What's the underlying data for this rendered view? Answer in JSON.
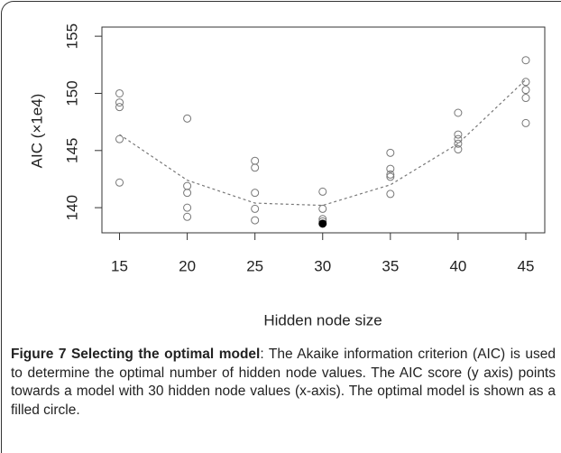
{
  "chart_data": {
    "type": "scatter",
    "xlabel": "Hidden node size",
    "ylabel": "AIC (×1e4)",
    "xlim": [
      13.7,
      46.4
    ],
    "ylim": [
      137.8,
      155.8
    ],
    "xticks": [
      15,
      20,
      25,
      30,
      35,
      40,
      45
    ],
    "yticks": [
      140,
      145,
      150,
      155
    ],
    "series": [
      {
        "color": "#777777",
        "filled": false,
        "x": [
          15,
          15,
          15,
          15,
          15,
          20,
          20,
          20,
          20,
          20,
          25,
          25,
          25,
          25,
          25,
          30,
          30,
          30,
          30,
          35,
          35,
          35,
          35,
          35,
          40,
          40,
          40,
          40,
          40,
          45,
          45,
          45,
          45,
          45
        ],
        "values": [
          150.0,
          149.2,
          148.8,
          146.0,
          142.2,
          147.8,
          141.9,
          141.3,
          140.0,
          139.2,
          144.1,
          143.5,
          141.3,
          139.9,
          138.9,
          141.4,
          139.9,
          139.0,
          138.8,
          144.8,
          143.4,
          142.9,
          142.7,
          141.2,
          148.3,
          146.4,
          146.0,
          145.6,
          145.1,
          152.9,
          151.0,
          150.3,
          149.6,
          147.4
        ]
      },
      {
        "color": "#000000",
        "filled": true,
        "x": [
          30
        ],
        "values": [
          138.6
        ]
      }
    ],
    "fit": {
      "color": "#777777",
      "dashed": true,
      "x": [
        15,
        20,
        25,
        30,
        35,
        40,
        45
      ],
      "values": [
        146.4,
        142.4,
        140.4,
        140.2,
        142.0,
        145.6,
        151.2
      ]
    }
  },
  "caption": {
    "label": "Figure 7 Selecting the optimal model",
    "text": ": The Akaike information criterion (AIC) is used to determine the optimal number of hidden node values. The AIC score (y axis) points towards a model with 30 hidden node values (x-axis). The optimal model is shown as a filled circle."
  }
}
